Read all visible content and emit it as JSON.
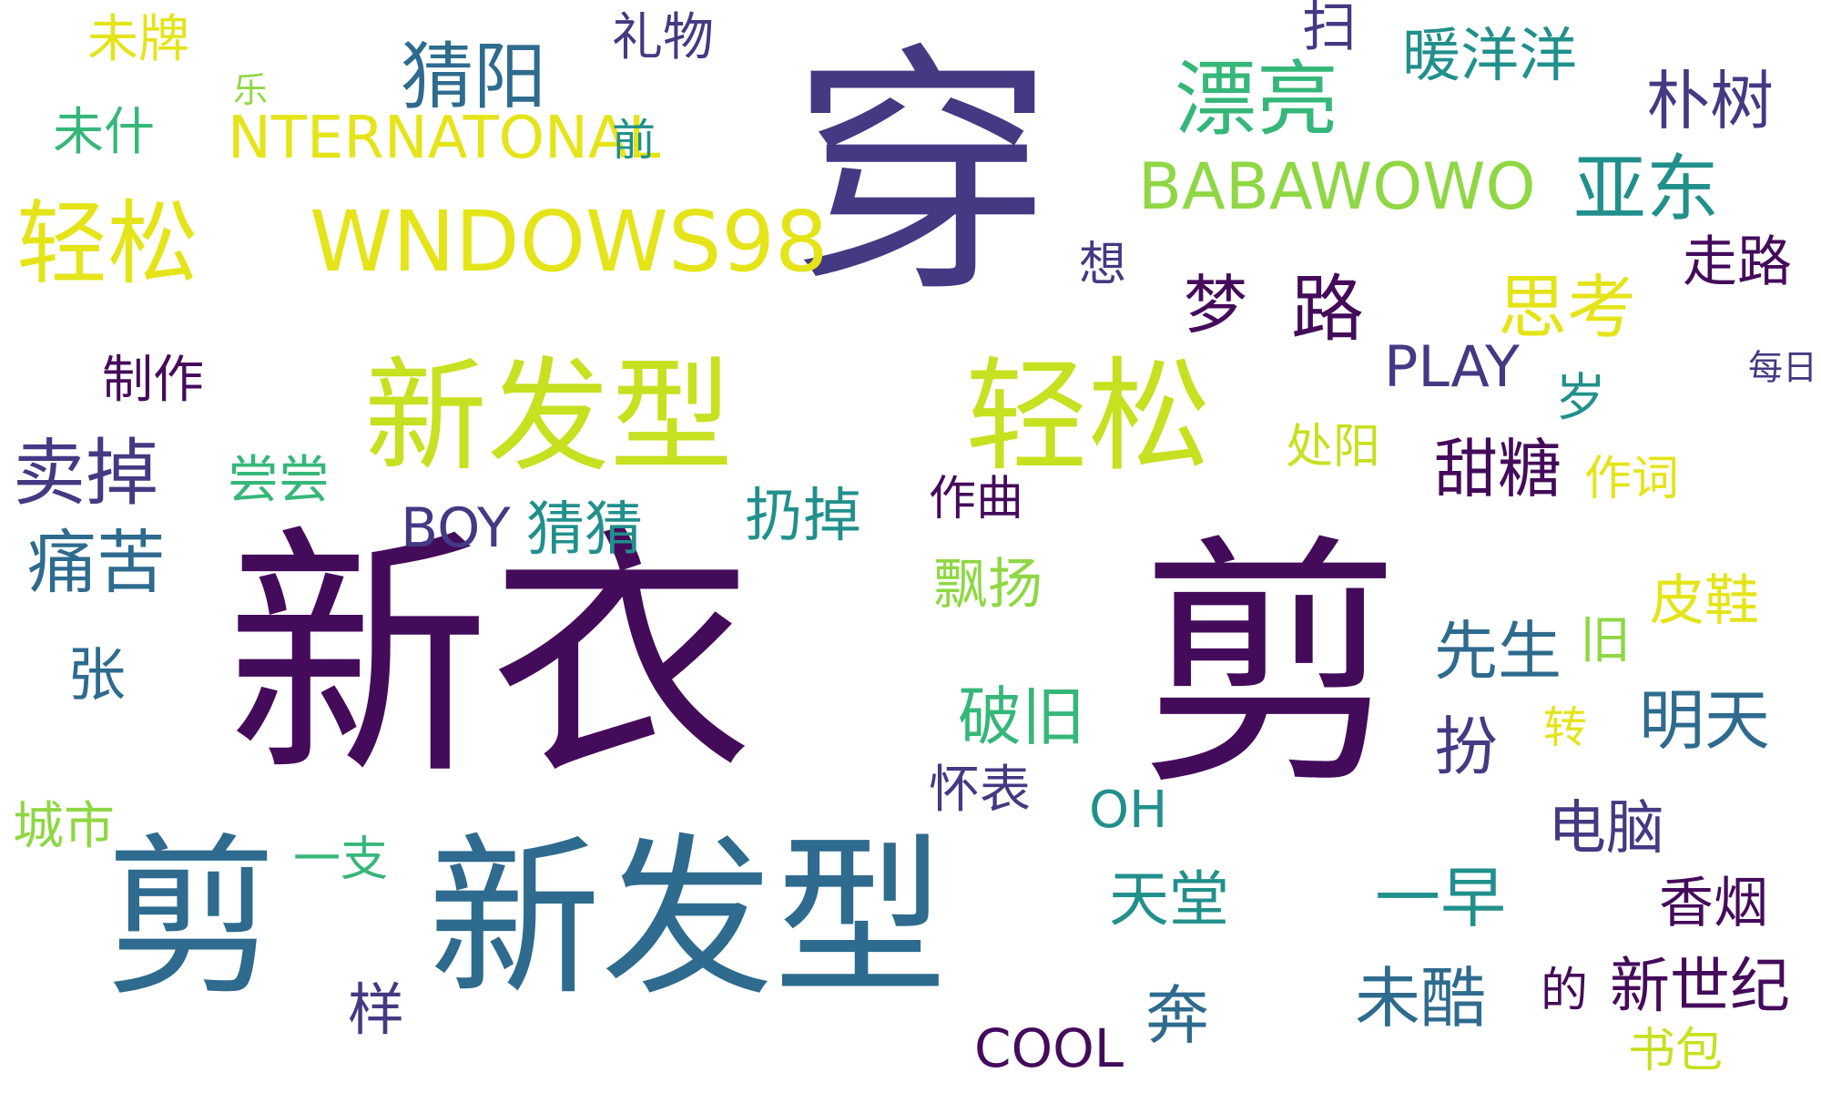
{
  "palette": {
    "c1": "#450b5b",
    "c2": "#433a83",
    "c3": "#2e6b8e",
    "c4": "#21908c",
    "c5": "#36b77a",
    "c6": "#8fd744",
    "c7": "#c7e020",
    "c8": "#e4e419"
  },
  "words": [
    {
      "text": "穿",
      "color": "c2"
    },
    {
      "text": "新衣",
      "color": "c1"
    },
    {
      "text": "剪",
      "color": "c1"
    },
    {
      "text": "剪",
      "color": "c3"
    },
    {
      "text": "新发型",
      "color": "c3"
    },
    {
      "text": "新发型",
      "color": "c7"
    },
    {
      "text": "轻松",
      "color": "c7"
    },
    {
      "text": "轻松",
      "color": "c8"
    },
    {
      "text": "WNDOWS98",
      "color": "c8"
    },
    {
      "text": "BABAWOWO",
      "color": "c6"
    },
    {
      "text": "漂亮",
      "color": "c5"
    },
    {
      "text": "猜阳",
      "color": "c3"
    },
    {
      "text": "礼物",
      "color": "c2"
    },
    {
      "text": "扫",
      "color": "c2"
    },
    {
      "text": "暖洋洋",
      "color": "c4"
    },
    {
      "text": "朴树",
      "color": "c2"
    },
    {
      "text": "亚东",
      "color": "c4"
    },
    {
      "text": "走路",
      "color": "c1"
    },
    {
      "text": "未牌",
      "color": "c8"
    },
    {
      "text": "乐",
      "color": "c6"
    },
    {
      "text": "未什",
      "color": "c5"
    },
    {
      "text": "NTERNATONAL",
      "color": "c8"
    },
    {
      "text": "前",
      "color": "c4"
    },
    {
      "text": "思考",
      "color": "c8"
    },
    {
      "text": "想",
      "color": "c2"
    },
    {
      "text": "梦",
      "color": "c1"
    },
    {
      "text": "路",
      "color": "c1"
    },
    {
      "text": "PLAY",
      "color": "c2"
    },
    {
      "text": "制作",
      "color": "c1"
    },
    {
      "text": "卖掉",
      "color": "c2"
    },
    {
      "text": "尝尝",
      "color": "c5"
    },
    {
      "text": "BOY",
      "color": "c2"
    },
    {
      "text": "猜猜",
      "color": "c4"
    },
    {
      "text": "扔掉",
      "color": "c4"
    },
    {
      "text": "作曲",
      "color": "c1"
    },
    {
      "text": "甜糖",
      "color": "c1"
    },
    {
      "text": "岁",
      "color": "c4"
    },
    {
      "text": "处阳",
      "color": "c7"
    },
    {
      "text": "作词",
      "color": "c8"
    },
    {
      "text": "每日",
      "color": "c2"
    },
    {
      "text": "痛苦",
      "color": "c3"
    },
    {
      "text": "飘扬",
      "color": "c6"
    },
    {
      "text": "皮鞋",
      "color": "c8"
    },
    {
      "text": "旧",
      "color": "c6"
    },
    {
      "text": "张",
      "color": "c3"
    },
    {
      "text": "破旧",
      "color": "c5"
    },
    {
      "text": "先生",
      "color": "c3"
    },
    {
      "text": "扮",
      "color": "c2"
    },
    {
      "text": "转",
      "color": "c8"
    },
    {
      "text": "明天",
      "color": "c3"
    },
    {
      "text": "怀表",
      "color": "c2"
    },
    {
      "text": "OH",
      "color": "c4"
    },
    {
      "text": "城市",
      "color": "c6"
    },
    {
      "text": "一支",
      "color": "c5"
    },
    {
      "text": "电脑",
      "color": "c2"
    },
    {
      "text": "天堂",
      "color": "c4"
    },
    {
      "text": "一早",
      "color": "c4"
    },
    {
      "text": "香烟",
      "color": "c1"
    },
    {
      "text": "样",
      "color": "c2"
    },
    {
      "text": "未酷",
      "color": "c3"
    },
    {
      "text": "的",
      "color": "c1"
    },
    {
      "text": "新世纪",
      "color": "c1"
    },
    {
      "text": "奔",
      "color": "c3"
    },
    {
      "text": "COOL",
      "color": "c1"
    },
    {
      "text": "书包",
      "color": "c7"
    }
  ]
}
